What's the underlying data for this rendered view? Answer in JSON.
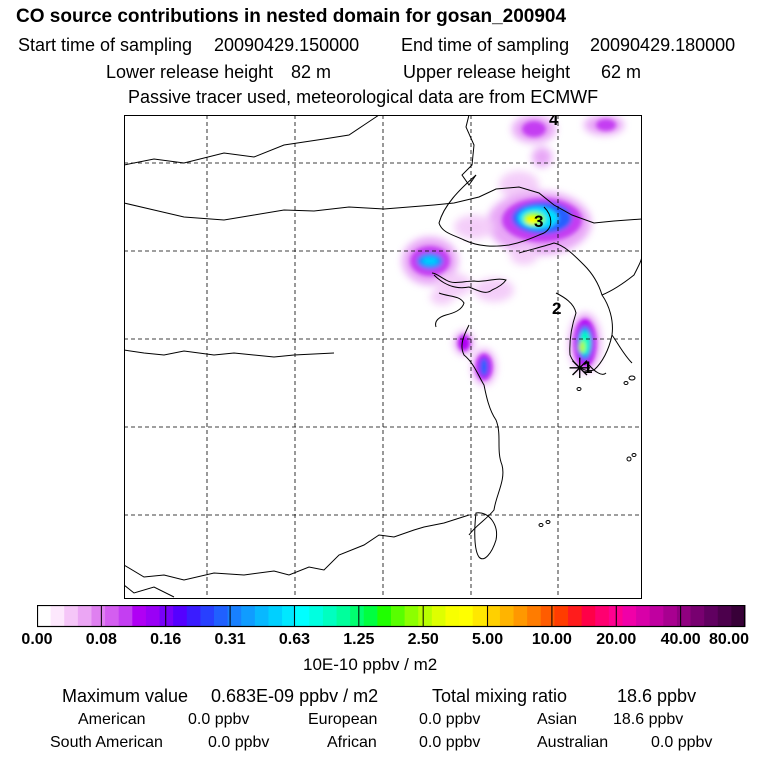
{
  "header": {
    "title": "CO  source contributions in nested domain for gosan_200904",
    "start_label": "Start time of sampling",
    "start_value": "20090429.150000",
    "end_label": "End time of sampling",
    "end_value": "20090429.180000",
    "lower_label": "Lower release height",
    "lower_value": "82 m",
    "upper_label": "Upper release height",
    "upper_value": "62 m",
    "info": "Passive tracer used, meteorological data are from ECMWF"
  },
  "map": {
    "markers": [
      "1",
      "2",
      "3",
      "4"
    ],
    "receptor_symbol": "✳"
  },
  "colorbar": {
    "ticks": [
      "0.00",
      "0.08",
      "0.16",
      "0.31",
      "0.63",
      "1.25",
      "2.50",
      "5.00",
      "10.00",
      "20.00",
      "40.00",
      "80.00"
    ],
    "unit": "10E-10 ppbv / m2",
    "colors": [
      "#ffffff",
      "#fde8fd",
      "#f5c6f8",
      "#eba6f4",
      "#df80f0",
      "#d45ef0",
      "#c43ef2",
      "#b000f4",
      "#9a00f6",
      "#7800fa",
      "#5500ff",
      "#3a1cff",
      "#2840ff",
      "#2060ff",
      "#1880ff",
      "#109cff",
      "#08b8ff",
      "#00d0ff",
      "#00e8ff",
      "#00ffff",
      "#00ffe0",
      "#00ffc0",
      "#00ff9c",
      "#00ff70",
      "#00ff40",
      "#20ff00",
      "#58ff00",
      "#8cff00",
      "#b8ff00",
      "#deff00",
      "#f8ff00",
      "#ffff00",
      "#ffe800",
      "#ffd000",
      "#ffb400",
      "#ff9800",
      "#ff7c00",
      "#ff5c00",
      "#ff3c00",
      "#ff1c1c",
      "#ff0048",
      "#ff0070",
      "#ff0090",
      "#f000a8",
      "#d800a8",
      "#c000a0",
      "#a80090",
      "#900080",
      "#780070",
      "#600060",
      "#4c004c",
      "#380038"
    ]
  },
  "summary": {
    "max_label": "Maximum value",
    "max_value": "0.683E-09 ppbv / m2",
    "total_label": "Total mixing ratio",
    "total_value": "18.6 ppbv",
    "regions": [
      {
        "name": "American",
        "value": "0.0 ppbv"
      },
      {
        "name": "European",
        "value": "0.0 ppbv"
      },
      {
        "name": "Asian",
        "value": "18.6 ppbv"
      },
      {
        "name": "South American",
        "value": "0.0 ppbv"
      },
      {
        "name": "African",
        "value": "0.0 ppbv"
      },
      {
        "name": "Australian",
        "value": "0.0 ppbv"
      }
    ]
  }
}
